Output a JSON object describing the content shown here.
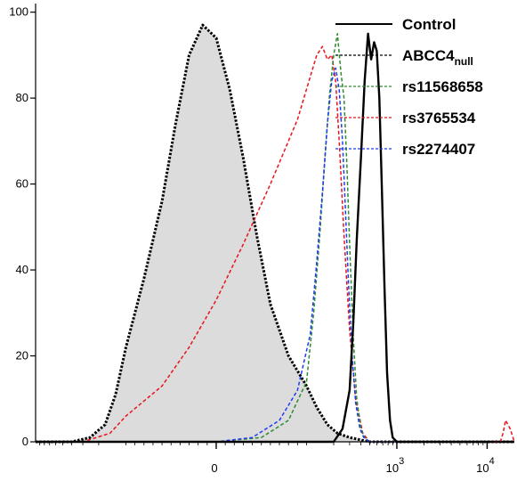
{
  "chart_data": {
    "type": "line",
    "xlabel": "",
    "ylabel": "",
    "ylim": [
      0,
      102
    ],
    "grid": false,
    "legend_position": "top-right",
    "y_ticks": [
      {
        "value": 0,
        "label": "0"
      },
      {
        "value": 20,
        "label": "20"
      },
      {
        "value": 40,
        "label": "40"
      },
      {
        "value": 60,
        "label": "60"
      },
      {
        "value": 80,
        "label": "80"
      },
      {
        "value": 100,
        "label": "100"
      }
    ],
    "x_ticks": [
      {
        "value": 0,
        "base": "0",
        "exp": ""
      },
      {
        "value": 1000,
        "base": "10",
        "exp": "3"
      },
      {
        "value": 10000,
        "base": "10",
        "exp": "4"
      }
    ],
    "legend": [
      {
        "name": "Control",
        "sub": "",
        "color": "#000000",
        "style": "solid"
      },
      {
        "name": "ABCC4",
        "sub": "null",
        "color": "#000000",
        "style": "dotted"
      },
      {
        "name": "rs11568658",
        "sub": "",
        "color": "#2e8b2e",
        "style": "dashed"
      },
      {
        "name": "rs3765534",
        "sub": "",
        "color": "#e8141b",
        "style": "dashed"
      },
      {
        "name": "rs2274407",
        "sub": "",
        "color": "#1f3cf0",
        "style": "dashed"
      }
    ],
    "series": [
      {
        "name": "ABCC4null",
        "color": "#000000",
        "style": "dotted",
        "fill": "#dcdcdc",
        "x": [
          -1000,
          -400,
          -250,
          -170,
          -130,
          -100,
          -80,
          -60,
          -45,
          -30,
          -15,
          0,
          15,
          30,
          45,
          60,
          80,
          100,
          130,
          170,
          220,
          300,
          500,
          1000,
          20000
        ],
        "y": [
          0,
          0,
          1,
          4,
          11,
          22,
          38,
          56,
          74,
          90,
          97,
          94,
          82,
          66,
          48,
          32,
          20,
          13,
          8,
          4,
          2,
          1,
          0,
          0,
          0
        ]
      },
      {
        "name": "Control",
        "color": "#000000",
        "style": "solid",
        "x": [
          -1000,
          100,
          200,
          250,
          300,
          330,
          360,
          400,
          440,
          480,
          520,
          560,
          600,
          640,
          680,
          730,
          780,
          840,
          900,
          1000,
          20000
        ],
        "y": [
          0,
          0,
          0,
          3,
          12,
          28,
          47,
          66,
          84,
          95,
          89,
          93,
          91,
          80,
          60,
          36,
          16,
          5,
          1,
          0,
          0
        ]
      },
      {
        "name": "rs11568658",
        "color": "#2e8b2e",
        "style": "dashed",
        "x": [
          -1000,
          0,
          50,
          80,
          100,
          120,
          140,
          160,
          180,
          200,
          220,
          240,
          260,
          280,
          300,
          330,
          360,
          400,
          440,
          500,
          20000
        ],
        "y": [
          0,
          0,
          1,
          5,
          14,
          30,
          48,
          66,
          81,
          90,
          95,
          86,
          80,
          64,
          46,
          24,
          10,
          3,
          1,
          0,
          0
        ]
      },
      {
        "name": "rs3765534",
        "color": "#e8141b",
        "style": "dashed",
        "x": [
          -1000,
          -300,
          -150,
          -100,
          -60,
          -30,
          0,
          30,
          60,
          90,
          110,
          130,
          150,
          170,
          190,
          210,
          230,
          260,
          300,
          350,
          420,
          500,
          20000
        ],
        "y": [
          0,
          0,
          2,
          6,
          13,
          22,
          33,
          46,
          60,
          75,
          85,
          90,
          92,
          89,
          90,
          84,
          70,
          48,
          26,
          10,
          2,
          0,
          0
        ]
      },
      {
        "name": "rs2274407",
        "color": "#1f3cf0",
        "style": "dashed",
        "x": [
          -1000,
          0,
          40,
          70,
          90,
          110,
          130,
          150,
          170,
          190,
          210,
          230,
          250,
          270,
          290,
          320,
          350,
          390,
          430,
          500,
          20000
        ],
        "y": [
          0,
          0,
          1,
          5,
          12,
          25,
          42,
          58,
          74,
          84,
          87,
          82,
          70,
          54,
          38,
          20,
          9,
          3,
          1,
          0,
          0
        ]
      },
      {
        "name": "outlier",
        "color": "#e8141b",
        "style": "dashed",
        "x": [
          12000,
          13000,
          14000,
          15000,
          16000,
          18000,
          20000
        ],
        "y": [
          0,
          0,
          0,
          2,
          5,
          3,
          0
        ]
      }
    ]
  }
}
